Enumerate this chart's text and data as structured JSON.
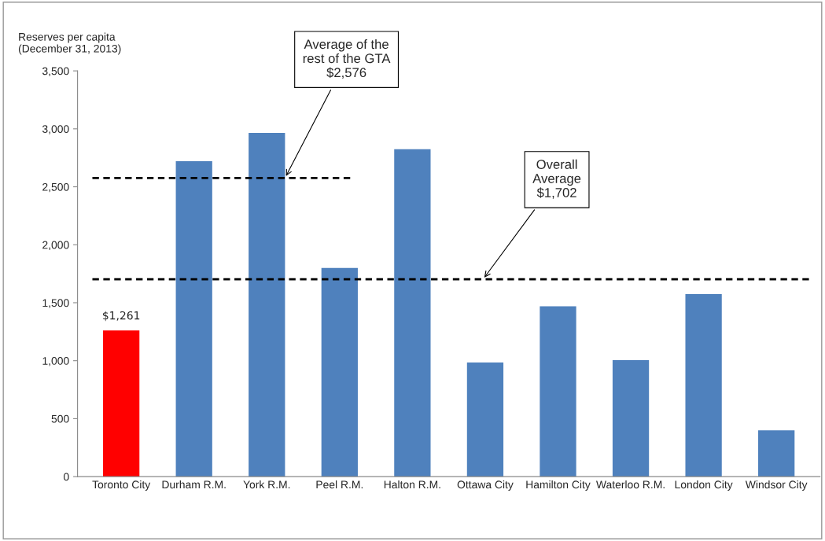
{
  "chart_data": {
    "type": "bar",
    "ylabel": "Reserves per capita\n(December 31, 2013)",
    "categories": [
      "Toronto City",
      "Durham R.M.",
      "York R.M.",
      "Peel R.M.",
      "Halton R.M.",
      "Ottawa City",
      "Hamilton City",
      "Waterloo R.M.",
      "London City",
      "Windsor City"
    ],
    "values": [
      1261,
      2720,
      2965,
      1800,
      2825,
      985,
      1470,
      1005,
      1575,
      400
    ],
    "colors": [
      "#ff0000",
      "#4f81bd",
      "#4f81bd",
      "#4f81bd",
      "#4f81bd",
      "#4f81bd",
      "#4f81bd",
      "#4f81bd",
      "#4f81bd",
      "#4f81bd"
    ],
    "value_labels": [
      "$1,261",
      null,
      null,
      null,
      null,
      null,
      null,
      null,
      null,
      null
    ],
    "ylim": [
      0,
      3500
    ],
    "yticks": [
      0,
      {
        "value": 500,
        "label": "500"
      },
      {
        "value": 1000,
        "label": "1,000"
      },
      {
        "value": 1500,
        "label": "1,500"
      },
      {
        "value": 2000,
        "label": "2,000"
      },
      {
        "value": 2500,
        "label": "2,500"
      },
      {
        "value": 3000,
        "label": "3,000"
      },
      {
        "value": 3500,
        "label": "3,500"
      }
    ],
    "ref_lines": [
      {
        "axis": "y",
        "value": 2576,
        "label": "Average of the\nrest of the GTA\n$2,576",
        "color": "#000000",
        "line_style": "dashed"
      },
      {
        "axis": "y",
        "value": 1702,
        "label": "Overall\nAverage\n$1,702",
        "color": "#000000",
        "line_style": "dashed"
      }
    ],
    "grid": false,
    "legend": false
  }
}
